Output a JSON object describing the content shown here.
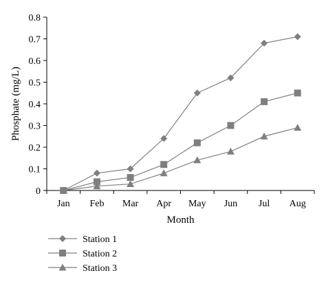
{
  "chart_data": {
    "type": "line",
    "title": "",
    "xlabel": "Month",
    "ylabel": "Phosphate (mg/L)",
    "categories": [
      "Jan",
      "Feb",
      "Mar",
      "Apr",
      "May",
      "Jun",
      "Jul",
      "Aug"
    ],
    "ylim": [
      0,
      0.8
    ],
    "yticks": [
      "0",
      "0.1",
      "0.2",
      "0.3",
      "0.4",
      "0.5",
      "0.6",
      "0.7",
      "0.8"
    ],
    "grid": false,
    "legend_position": "bottom-left",
    "line_color": "#7f7f7f",
    "series": [
      {
        "name": "Station 1",
        "marker": "diamond",
        "values": [
          0,
          0.08,
          0.1,
          0.24,
          0.45,
          0.52,
          0.68,
          0.71
        ]
      },
      {
        "name": "Station 2",
        "marker": "square",
        "values": [
          0,
          0.04,
          0.06,
          0.12,
          0.22,
          0.3,
          0.41,
          0.45
        ]
      },
      {
        "name": "Station 3",
        "marker": "triangle",
        "values": [
          0,
          0.02,
          0.03,
          0.08,
          0.14,
          0.18,
          0.25,
          0.29
        ]
      }
    ]
  }
}
